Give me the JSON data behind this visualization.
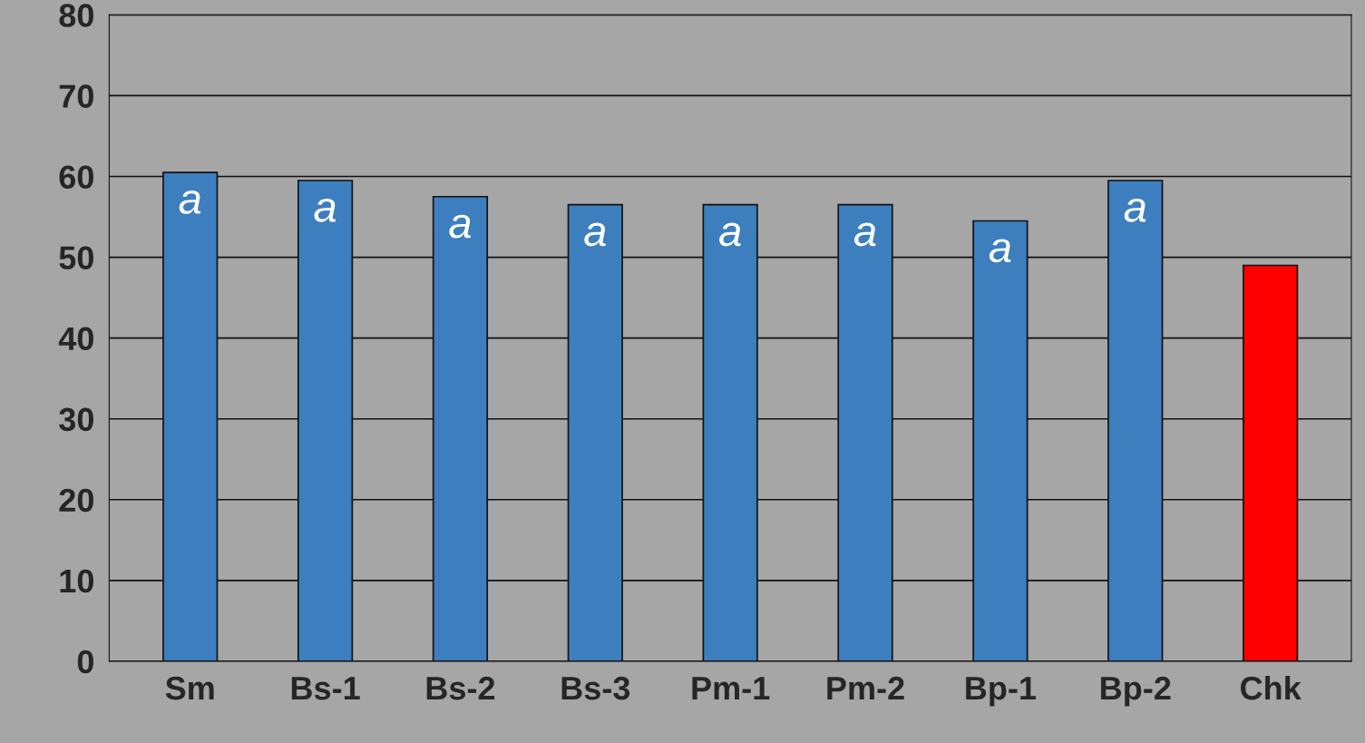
{
  "chart_data": {
    "type": "bar",
    "categories": [
      "Sm",
      "Bs-1",
      "Bs-2",
      "Bs-3",
      "Pm-1",
      "Pm-2",
      "Bp-1",
      "Bp-2",
      "Chk"
    ],
    "values": [
      60.5,
      59.5,
      57.5,
      56.5,
      56.5,
      56.5,
      54.5,
      59.5,
      49
    ],
    "colors": [
      "#3d7ebf",
      "#3d7ebf",
      "#3d7ebf",
      "#3d7ebf",
      "#3d7ebf",
      "#3d7ebf",
      "#3d7ebf",
      "#3d7ebf",
      "#ff0000"
    ],
    "ylim": [
      0,
      80
    ],
    "yticks": [
      0,
      10,
      20,
      30,
      40,
      50,
      60,
      70,
      80
    ],
    "grid": "y",
    "annotations": [
      {
        "text": "a",
        "x": "Sm",
        "y": 60.5
      },
      {
        "text": "a",
        "x": "Bs-1",
        "y": 59.5
      },
      {
        "text": "a",
        "x": "Bs-2",
        "y": 57.5
      },
      {
        "text": "a",
        "x": "Bs-3",
        "y": 56.5
      },
      {
        "text": "a",
        "x": "Pm-1",
        "y": 56.5
      },
      {
        "text": "a",
        "x": "Pm-2",
        "y": 56.5
      },
      {
        "text": "a",
        "x": "Bp-1",
        "y": 54.5
      },
      {
        "text": "a",
        "x": "Bp-2",
        "y": 59.5
      }
    ]
  }
}
